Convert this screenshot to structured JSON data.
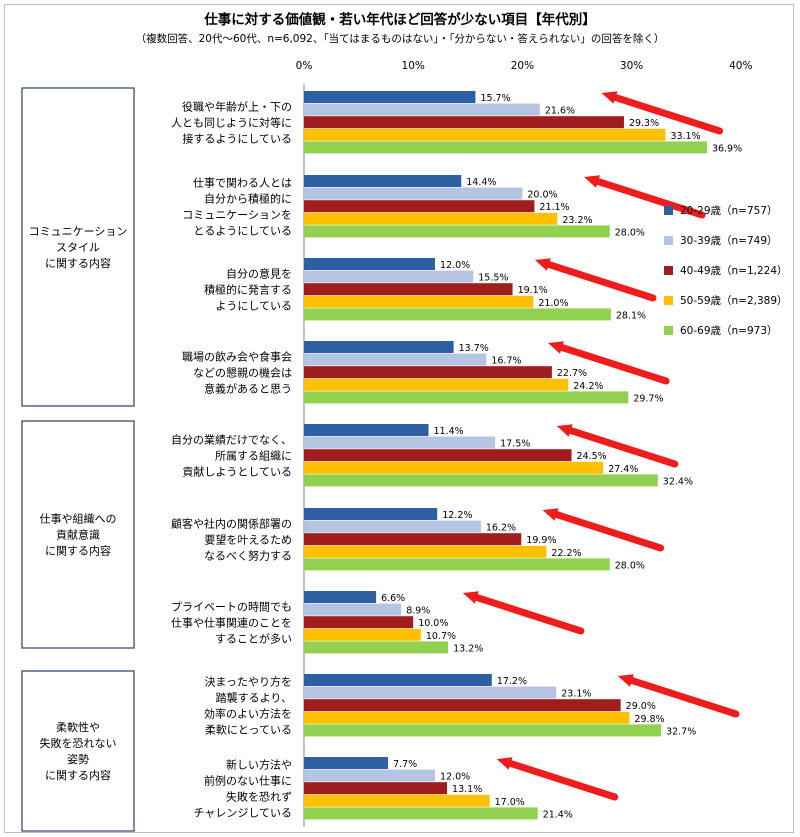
{
  "chart_data": {
    "type": "bar",
    "orientation": "horizontal",
    "title": "仕事に対する価値観・若い年代ほど回答が少ない項目【年代別】",
    "subtitle": "（複数回答、20代～60代、n=6,092、「当てはまるものはない」・「分からない・答えられない」の回答を除く）",
    "x_ticks": [
      "0%",
      "10%",
      "20%",
      "30%",
      "40%"
    ],
    "xlim": [
      0,
      40
    ],
    "grid": false,
    "legend_position": "right",
    "groups": [
      {
        "label": [
          "コミュニケーション",
          "スタイル",
          "に関する内容"
        ],
        "category_count": 4
      },
      {
        "label": [
          "仕事や組織への",
          "貢献意識",
          "に関する内容"
        ],
        "category_count": 3
      },
      {
        "label": [
          "柔軟性や",
          "失敗を恐れない",
          "姿勢",
          "に関する内容"
        ],
        "category_count": 2
      }
    ],
    "categories": [
      [
        "役職や年齢が上・下の",
        "人とも同じように対等に",
        "接するようにしている"
      ],
      [
        "仕事で関わる人とは",
        "自分から積極的に",
        "コミュニケーションを",
        "とるようにしている"
      ],
      [
        "自分の意見を",
        "積極的に発言する",
        "ようにしている"
      ],
      [
        "職場の飲み会や食事会",
        "などの懇親の機会は",
        "意義があると思う"
      ],
      [
        "自分の業績だけでなく、",
        "所属する組織に",
        "貢献しようとしている"
      ],
      [
        "顧客や社内の関係部署の",
        "要望を叶えるため",
        "なるべく努力する"
      ],
      [
        "プライベートの時間でも",
        "仕事や仕事関連のことを",
        "することが多い"
      ],
      [
        "決まったやり方を",
        "踏襲するより、",
        "効率のよい方法を",
        "柔軟にとっている"
      ],
      [
        "新しい方法や",
        "前例のない仕事に",
        "失敗を恐れず",
        "チャレンジしている"
      ]
    ],
    "series": [
      {
        "name": "20-29歳（n=757）",
        "color": "#2e5fa3",
        "values": [
          15.7,
          14.4,
          12.0,
          13.7,
          11.4,
          12.2,
          6.6,
          17.2,
          7.7
        ]
      },
      {
        "name": "30-39歳（n=749）",
        "color": "#b4c4e2",
        "values": [
          21.6,
          20.0,
          15.5,
          16.7,
          17.5,
          16.2,
          8.9,
          23.1,
          12.0
        ]
      },
      {
        "name": "40-49歳（n=1,224）",
        "color": "#a01d1d",
        "values": [
          29.3,
          21.1,
          19.1,
          22.7,
          24.5,
          19.9,
          10.0,
          29.0,
          13.1
        ]
      },
      {
        "name": "50-59歳（n=2,389）",
        "color": "#ffc000",
        "values": [
          33.1,
          23.2,
          21.0,
          24.2,
          27.4,
          22.2,
          10.7,
          29.8,
          17.0
        ]
      },
      {
        "name": "60-69歳（n=973）",
        "color": "#92d050",
        "values": [
          36.9,
          28.0,
          28.1,
          29.7,
          32.4,
          28.0,
          13.2,
          32.7,
          21.4
        ]
      }
    ],
    "data_labels": [
      [
        "15.7%",
        "14.4%",
        "12.0%",
        "13.7%",
        "11.4%",
        "12.2%",
        "6.6%",
        "17.2%",
        "7.7%"
      ],
      [
        "21.6%",
        "20.0%",
        "15.5%",
        "16.7%",
        "17.5%",
        "16.2%",
        "8.9%",
        "23.1%",
        "12.0%"
      ],
      [
        "29.3%",
        "21.1%",
        "19.1%",
        "22.7%",
        "24.5%",
        "19.9%",
        "10.0%",
        "29.0%",
        "13.1%"
      ],
      [
        "33.1%",
        "23.2%",
        "21.0%",
        "24.2%",
        "27.4%",
        "22.2%",
        "10.7%",
        "29.8%",
        "17.0%"
      ],
      [
        "36.9%",
        "28.0%",
        "28.1%",
        "29.7%",
        "32.4%",
        "28.0%",
        "13.2%",
        "32.7%",
        "21.4%"
      ]
    ],
    "annotation_arrow_color": "#ee1c1c"
  }
}
